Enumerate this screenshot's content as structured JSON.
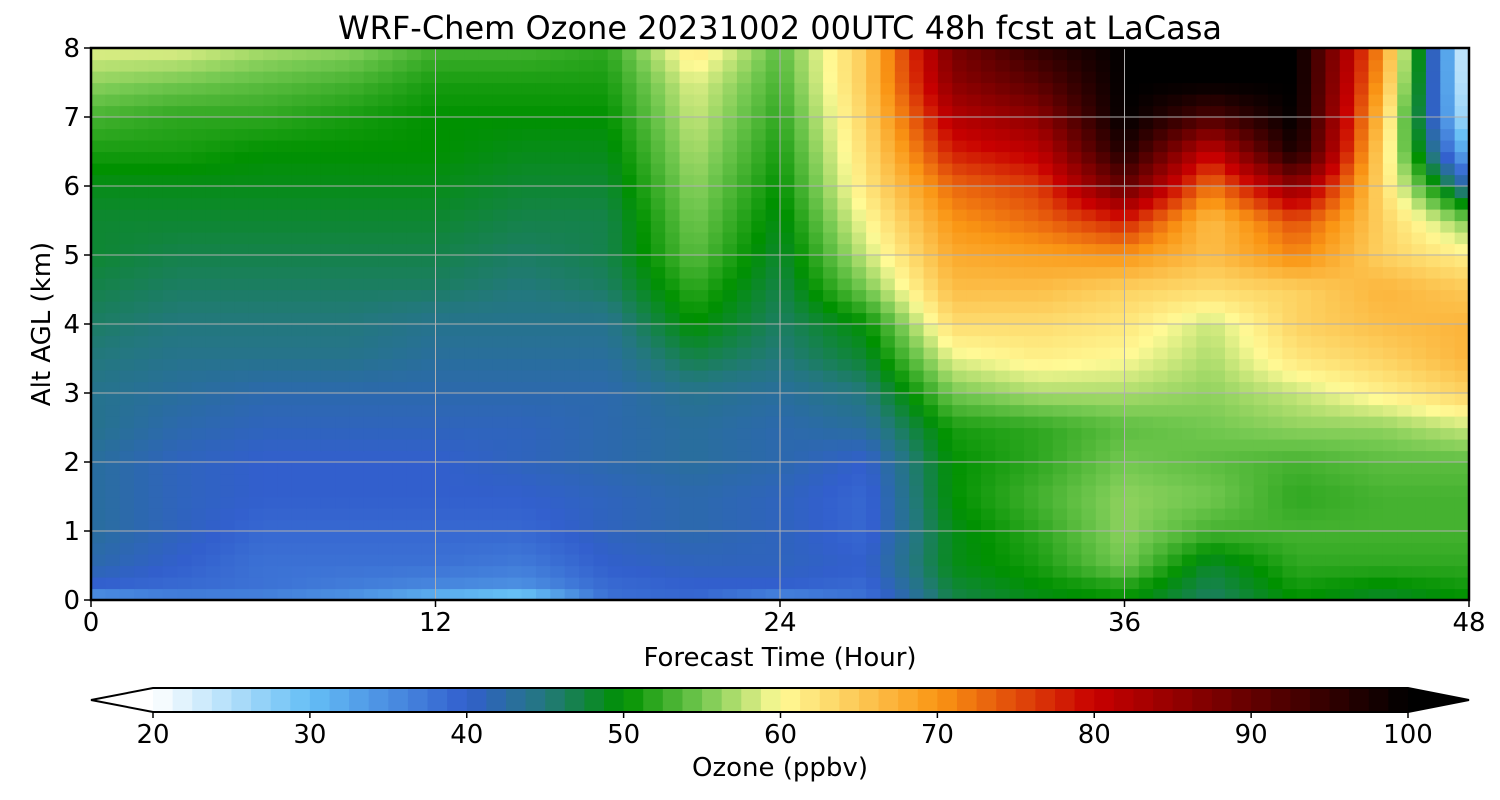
{
  "chart_data": {
    "type": "heatmap",
    "title": "WRF-Chem Ozone  20231002 00UTC 48h fcst at LaCasa",
    "xlabel": "Forecast Time (Hour)",
    "ylabel": "Alt AGL (km)",
    "xlim": [
      0,
      48
    ],
    "ylim": [
      0,
      8
    ],
    "x_ticks": [
      "0",
      "12",
      "24",
      "36",
      "48"
    ],
    "y_ticks": [
      "0",
      "1",
      "2",
      "3",
      "4",
      "5",
      "6",
      "7",
      "8"
    ],
    "grid": true,
    "colorbar": {
      "label": "Ozone  (ppbv)",
      "min": 20,
      "max": 100,
      "ticks": [
        "20",
        "30",
        "40",
        "50",
        "60",
        "70",
        "80",
        "90",
        "100"
      ],
      "extend": "both"
    },
    "x_hours": [
      0,
      3,
      6,
      9,
      12,
      15,
      18,
      21,
      24,
      27,
      30,
      33,
      36,
      39,
      42,
      45,
      48
    ],
    "y_km": [
      0,
      0.25,
      0.5,
      1,
      1.5,
      2,
      2.5,
      3,
      3.5,
      4,
      4.5,
      5,
      5.5,
      6,
      6.5,
      7,
      7.5,
      8
    ],
    "ozone_ppbv": [
      [
        33,
        36,
        36,
        34,
        30,
        27,
        38,
        39,
        35,
        38,
        47,
        49,
        50,
        46,
        50,
        48,
        50
      ],
      [
        40,
        39,
        38,
        37,
        36,
        35,
        39,
        40,
        40,
        39,
        48,
        50,
        52,
        47,
        51,
        50,
        51
      ],
      [
        42,
        40,
        38,
        38,
        38,
        37,
        40,
        41,
        41,
        40,
        49,
        51,
        55,
        48,
        52,
        52,
        52
      ],
      [
        43,
        41,
        39,
        39,
        39,
        39,
        41,
        42,
        41,
        39,
        49,
        52,
        56,
        53,
        53,
        53,
        53
      ],
      [
        43,
        41,
        40,
        40,
        40,
        40,
        41,
        42,
        41,
        39,
        50,
        53,
        56,
        55,
        52,
        53,
        53
      ],
      [
        43,
        41,
        40,
        40,
        40,
        41,
        42,
        43,
        42,
        40,
        50,
        52,
        55,
        54,
        53,
        54,
        54
      ],
      [
        44,
        42,
        41,
        41,
        41,
        41,
        42,
        43,
        42,
        43,
        51,
        52,
        54,
        55,
        56,
        56,
        58
      ],
      [
        44,
        43,
        42,
        42,
        42,
        42,
        42,
        44,
        43,
        45,
        55,
        57,
        57,
        56,
        58,
        61,
        64
      ],
      [
        45,
        44,
        44,
        44,
        43,
        43,
        43,
        47,
        45,
        48,
        59,
        61,
        60,
        57,
        62,
        64,
        67
      ],
      [
        46,
        45,
        45,
        45,
        44,
        44,
        44,
        50,
        46,
        50,
        63,
        63,
        62,
        58,
        64,
        66,
        67
      ],
      [
        47,
        46,
        46,
        46,
        46,
        45,
        46,
        52,
        47,
        55,
        66,
        66,
        64,
        63,
        64,
        67,
        65
      ],
      [
        48,
        47,
        47,
        47,
        47,
        46,
        47,
        54,
        48,
        58,
        68,
        69,
        70,
        66,
        71,
        64,
        61
      ],
      [
        48,
        48,
        48,
        48,
        48,
        47,
        47,
        55,
        49,
        60,
        70,
        73,
        78,
        66,
        75,
        64,
        55
      ],
      [
        49,
        49,
        49,
        49,
        49,
        48,
        48,
        56,
        50,
        62,
        73,
        76,
        90,
        72,
        86,
        63,
        42
      ],
      [
        51,
        51,
        50,
        50,
        50,
        49,
        49,
        57,
        51,
        63,
        78,
        81,
        97,
        80,
        98,
        63,
        30
      ],
      [
        53,
        52,
        52,
        51,
        50,
        50,
        50,
        58,
        52,
        64,
        82,
        86,
        100,
        92,
        100,
        65,
        23
      ],
      [
        56,
        55,
        54,
        53,
        51,
        51,
        51,
        59,
        53,
        65,
        86,
        91,
        100,
        100,
        100,
        68,
        21
      ],
      [
        59,
        59,
        57,
        56,
        53,
        53,
        52,
        62,
        54,
        65,
        88,
        95,
        100,
        100,
        100,
        70,
        20
      ]
    ]
  }
}
